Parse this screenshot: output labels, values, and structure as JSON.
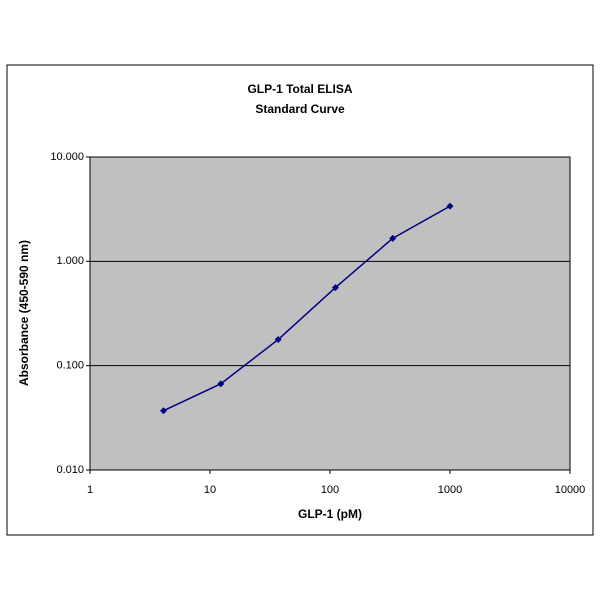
{
  "chart_data": {
    "type": "line",
    "title": [
      "GLP-1 Total ELISA",
      "Standard Curve"
    ],
    "x_label": "GLP-1  (pM)",
    "y_label": "Absorbance (450-590 nm)",
    "x": [
      4.1,
      12.3,
      37,
      111,
      333,
      1000
    ],
    "series": [
      {
        "color": "#000080",
        "values": [
          0.037,
          0.067,
          0.178,
          0.56,
          1.66,
          3.38
        ]
      }
    ],
    "xscale": "log",
    "yscale": "log",
    "xlim": [
      1,
      10000
    ],
    "xticks": [
      1,
      10,
      100,
      1000,
      10000
    ],
    "ylim": [
      0.01,
      10
    ],
    "yticks": [
      {
        "value": 0.01,
        "label": "0.010"
      },
      {
        "value": 0.1,
        "label": "0.100"
      },
      {
        "value": 1,
        "label": "1.000"
      },
      {
        "value": 10,
        "label": "10.000"
      }
    ],
    "grid": true,
    "plot_background": "#c0c0c0"
  }
}
